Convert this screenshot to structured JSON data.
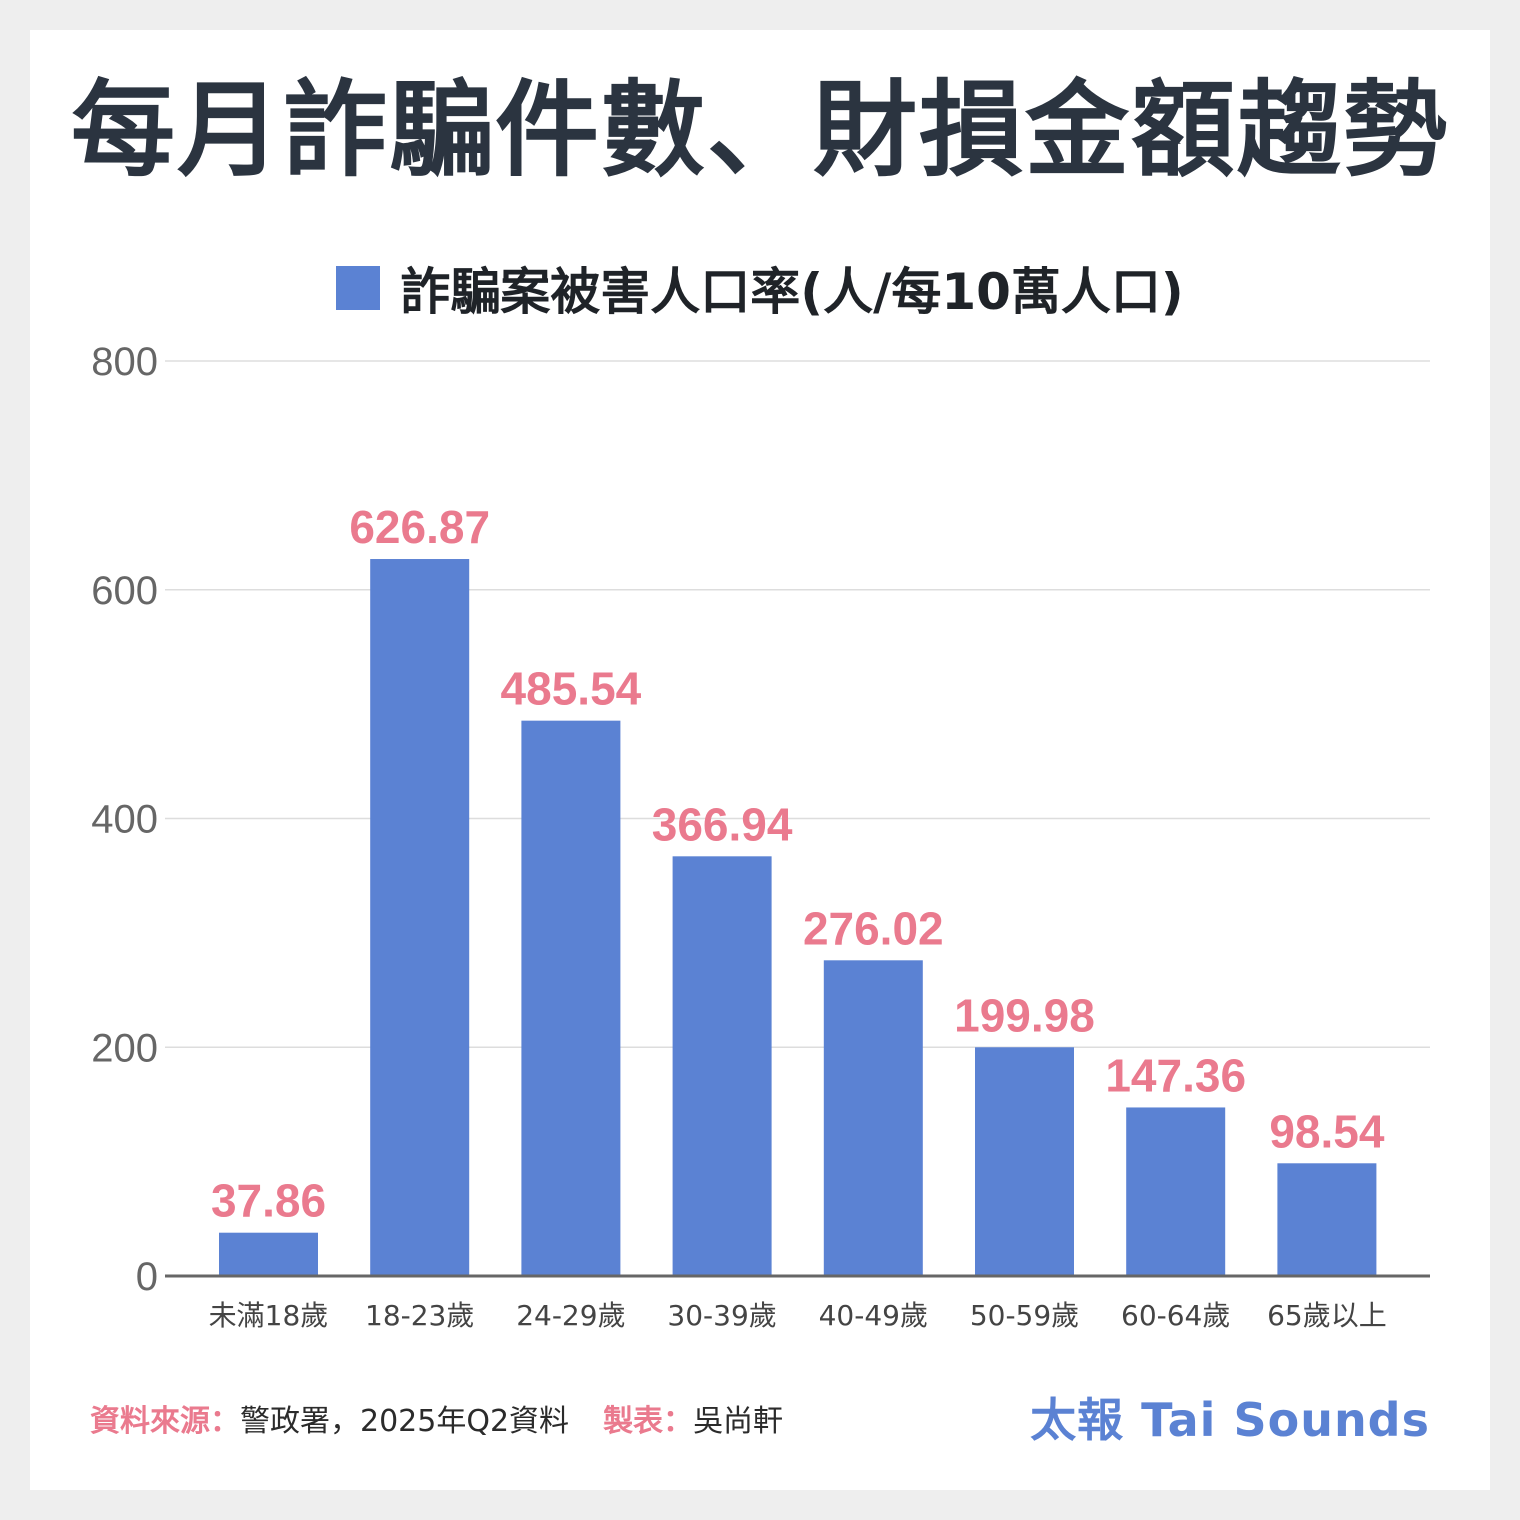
{
  "title": "每月詐騙件數、財損金額趨勢",
  "colors": {
    "bar": "#5b82d3",
    "value_label": "#ea7a8e",
    "axis": "#666666",
    "grid": "#dddddd",
    "brand": "#5b82d3"
  },
  "chart_data": {
    "type": "bar",
    "categories": [
      "未滿18歲",
      "18-23歲",
      "24-29歲",
      "30-39歲",
      "40-49歲",
      "50-59歲",
      "60-64歲",
      "65歲以上"
    ],
    "series": [
      {
        "name": "詐騙案被害人口率(人/每10萬人口)",
        "values": [
          37.86,
          626.87,
          485.54,
          366.94,
          276.02,
          199.98,
          147.36,
          98.54
        ],
        "labels": [
          "37.86",
          "626.87",
          "485.54",
          "366.94",
          "276.02",
          "199.98",
          "147.36",
          "98.54"
        ]
      }
    ],
    "ylim": [
      0,
      800
    ],
    "yticks": [
      0,
      200,
      400,
      600,
      800
    ],
    "grid": true,
    "legend": "top-center"
  },
  "footer": {
    "source_label": "資料來源：",
    "source_text": "警政署，2025年Q2資料",
    "maker_label": "製表：",
    "maker_text": "吳尚軒"
  },
  "brand": "太報 Tai Sounds"
}
